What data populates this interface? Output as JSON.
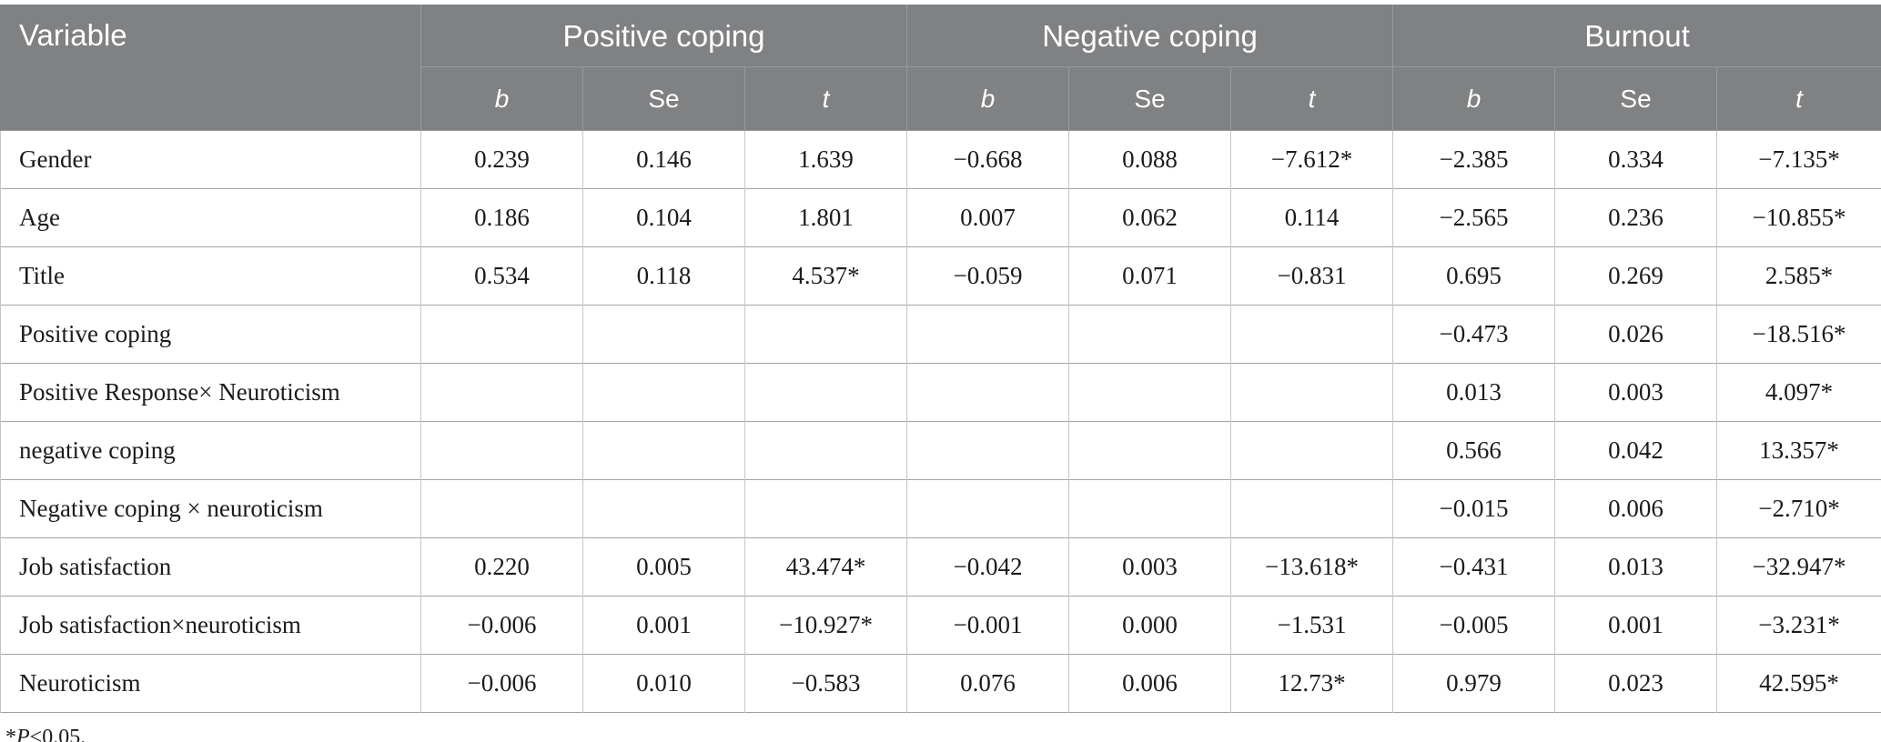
{
  "colors": {
    "header_bg": "#7f8183",
    "header_text": "#ffffff",
    "header_border": "#98999b",
    "border_vertical": "#c7c7c7",
    "border_horizontal": "#a5a5a5",
    "body_text": "#1b1b1b"
  },
  "table": {
    "corner_header": "Variable",
    "groups": [
      {
        "label": "Positive coping"
      },
      {
        "label": "Negative coping"
      },
      {
        "label": "Burnout"
      }
    ],
    "sub_headers": [
      "b",
      "Se",
      "t"
    ],
    "rows": [
      {
        "label": "Gender",
        "values": [
          "0.239",
          "0.146",
          "1.639",
          "−0.668",
          "0.088",
          "−7.612*",
          "−2.385",
          "0.334",
          "−7.135*"
        ]
      },
      {
        "label": "Age",
        "values": [
          "0.186",
          "0.104",
          "1.801",
          "0.007",
          "0.062",
          "0.114",
          "−2.565",
          "0.236",
          "−10.855*"
        ]
      },
      {
        "label": "Title",
        "values": [
          "0.534",
          "0.118",
          "4.537*",
          "−0.059",
          "0.071",
          "−0.831",
          "0.695",
          "0.269",
          "2.585*"
        ]
      },
      {
        "label": "Positive coping",
        "values": [
          "",
          "",
          "",
          "",
          "",
          "",
          "−0.473",
          "0.026",
          "−18.516*"
        ]
      },
      {
        "label": "Positive Response× Neuroticism",
        "values": [
          "",
          "",
          "",
          "",
          "",
          "",
          "0.013",
          "0.003",
          "4.097*"
        ]
      },
      {
        "label": "negative coping",
        "values": [
          "",
          "",
          "",
          "",
          "",
          "",
          "0.566",
          "0.042",
          "13.357*"
        ]
      },
      {
        "label": "Negative coping × neuroticism",
        "values": [
          "",
          "",
          "",
          "",
          "",
          "",
          "−0.015",
          "0.006",
          "−2.710*"
        ]
      },
      {
        "label": "Job satisfaction",
        "values": [
          "0.220",
          "0.005",
          "43.474*",
          "−0.042",
          "0.003",
          "−13.618*",
          "−0.431",
          "0.013",
          "−32.947*"
        ]
      },
      {
        "label": "Job satisfaction×neuroticism",
        "values": [
          "−0.006",
          "0.001",
          "−10.927*",
          "−0.001",
          "0.000",
          "−1.531",
          "−0.005",
          "0.001",
          "−3.231*"
        ]
      },
      {
        "label": "Neuroticism",
        "values": [
          "−0.006",
          "0.010",
          "−0.583",
          "0.076",
          "0.006",
          "12.73*",
          "0.979",
          "0.023",
          "42.595*"
        ]
      }
    ],
    "footnote": {
      "star": "*",
      "p": "P",
      "rest": "<0.05."
    }
  }
}
